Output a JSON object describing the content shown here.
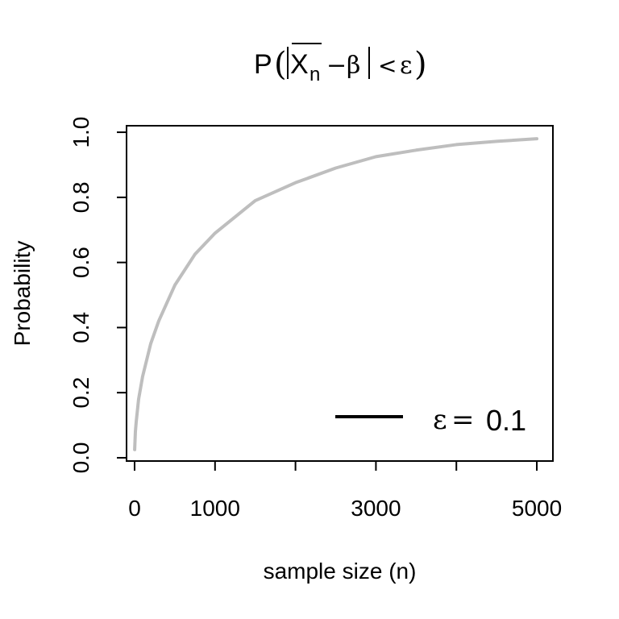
{
  "chart_data": {
    "type": "line",
    "title_parts": {
      "p": "P",
      "open": "(",
      "x": "X",
      "sub": "n",
      "minus": "−",
      "beta": "β",
      "lt": "<",
      "eps": "ε",
      "close": ")"
    },
    "xlabel": "sample size (n)",
    "ylabel": "Probability",
    "xlim": [
      -100,
      5200
    ],
    "ylim": [
      -0.01,
      1.02
    ],
    "xticks": [
      0,
      1000,
      2000,
      3000,
      4000,
      5000
    ],
    "xtick_labels": [
      "0",
      "1000",
      "",
      "3000",
      "",
      "5000"
    ],
    "yticks": [
      0.0,
      0.2,
      0.4,
      0.6,
      0.8,
      1.0
    ],
    "ytick_labels": [
      "0.0",
      "0.2",
      "0.4",
      "0.6",
      "0.8",
      "1.0"
    ],
    "grid": false,
    "legend": {
      "placement": "bottom-right",
      "symbol_color": "#000000",
      "parts": {
        "eps": "ε",
        "eq": "=",
        "value": "0.1"
      }
    },
    "series": [
      {
        "color": "#bebebe",
        "x": [
          1,
          10,
          20,
          50,
          100,
          200,
          300,
          500,
          750,
          1000,
          1500,
          2000,
          2500,
          3000,
          3500,
          4000,
          4500,
          5000
        ],
        "y": [
          0.025,
          0.08,
          0.11,
          0.18,
          0.25,
          0.35,
          0.42,
          0.53,
          0.625,
          0.69,
          0.79,
          0.845,
          0.89,
          0.925,
          0.945,
          0.962,
          0.972,
          0.98
        ]
      }
    ]
  }
}
